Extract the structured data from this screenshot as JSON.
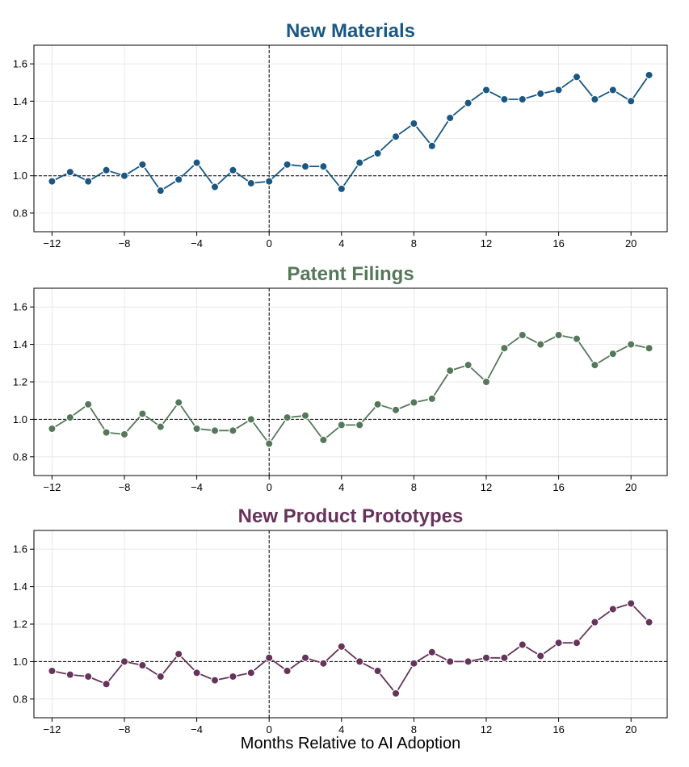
{
  "chart_data": [
    {
      "type": "line",
      "title": "New Materials",
      "color": "#1a5783",
      "x": [
        -12,
        -11,
        -10,
        -9,
        -8,
        -7,
        -6,
        -5,
        -4,
        -3,
        -2,
        -1,
        0,
        1,
        2,
        3,
        4,
        5,
        6,
        7,
        8,
        9,
        10,
        11,
        12,
        13,
        14,
        15,
        16,
        17,
        18,
        19,
        20,
        21
      ],
      "y": [
        0.97,
        1.02,
        0.97,
        1.03,
        1.0,
        1.06,
        0.92,
        0.98,
        1.07,
        0.94,
        1.03,
        0.96,
        0.97,
        1.06,
        1.05,
        1.05,
        0.93,
        1.07,
        1.12,
        1.21,
        1.28,
        1.16,
        1.31,
        1.39,
        1.46,
        1.41,
        1.41,
        1.44,
        1.46,
        1.53,
        1.41,
        1.46,
        1.4,
        1.54
      ],
      "xlim": [
        -13,
        22
      ],
      "ylim": [
        0.7,
        1.7
      ],
      "xticks": [
        -12,
        -8,
        -4,
        0,
        4,
        8,
        12,
        16,
        20
      ],
      "yticks": [
        0.8,
        1.0,
        1.2,
        1.4,
        1.6
      ],
      "hline": 1.0,
      "vline": 0,
      "grid": true
    },
    {
      "type": "line",
      "title": "Patent Filings",
      "color": "#55785a",
      "x": [
        -12,
        -11,
        -10,
        -9,
        -8,
        -7,
        -6,
        -5,
        -4,
        -3,
        -2,
        -1,
        0,
        1,
        2,
        3,
        4,
        5,
        6,
        7,
        8,
        9,
        10,
        11,
        12,
        13,
        14,
        15,
        16,
        17,
        18,
        19,
        20,
        21
      ],
      "y": [
        0.95,
        1.01,
        1.08,
        0.93,
        0.92,
        1.03,
        0.96,
        1.09,
        0.95,
        0.94,
        0.94,
        1.0,
        0.87,
        1.01,
        1.02,
        0.89,
        0.97,
        0.97,
        1.08,
        1.05,
        1.09,
        1.11,
        1.26,
        1.29,
        1.2,
        1.38,
        1.45,
        1.4,
        1.45,
        1.43,
        1.29,
        1.35,
        1.4,
        1.38
      ],
      "xlim": [
        -13,
        22
      ],
      "ylim": [
        0.7,
        1.7
      ],
      "xticks": [
        -12,
        -8,
        -4,
        0,
        4,
        8,
        12,
        16,
        20
      ],
      "yticks": [
        0.8,
        1.0,
        1.2,
        1.4,
        1.6
      ],
      "hline": 1.0,
      "vline": 0,
      "grid": true
    },
    {
      "type": "line",
      "title": "New Product Prototypes",
      "color": "#66335a",
      "x": [
        -12,
        -11,
        -10,
        -9,
        -8,
        -7,
        -6,
        -5,
        -4,
        -3,
        -2,
        -1,
        0,
        1,
        2,
        3,
        4,
        5,
        6,
        7,
        8,
        9,
        10,
        11,
        12,
        13,
        14,
        15,
        16,
        17,
        18,
        19,
        20,
        21
      ],
      "y": [
        0.95,
        0.93,
        0.92,
        0.88,
        1.0,
        0.98,
        0.92,
        1.04,
        0.94,
        0.9,
        0.92,
        0.94,
        1.02,
        0.95,
        1.02,
        0.99,
        1.08,
        1.0,
        0.95,
        0.83,
        0.99,
        1.05,
        1.0,
        1.0,
        1.02,
        1.02,
        1.09,
        1.03,
        1.1,
        1.1,
        1.21,
        1.28,
        1.31,
        1.21
      ],
      "xlim": [
        -13,
        22
      ],
      "ylim": [
        0.7,
        1.7
      ],
      "xticks": [
        -12,
        -8,
        -4,
        0,
        4,
        8,
        12,
        16,
        20
      ],
      "yticks": [
        0.8,
        1.0,
        1.2,
        1.4,
        1.6
      ],
      "hline": 1.0,
      "vline": 0,
      "grid": true,
      "xlabel": "Months Relative to AI Adoption"
    }
  ]
}
